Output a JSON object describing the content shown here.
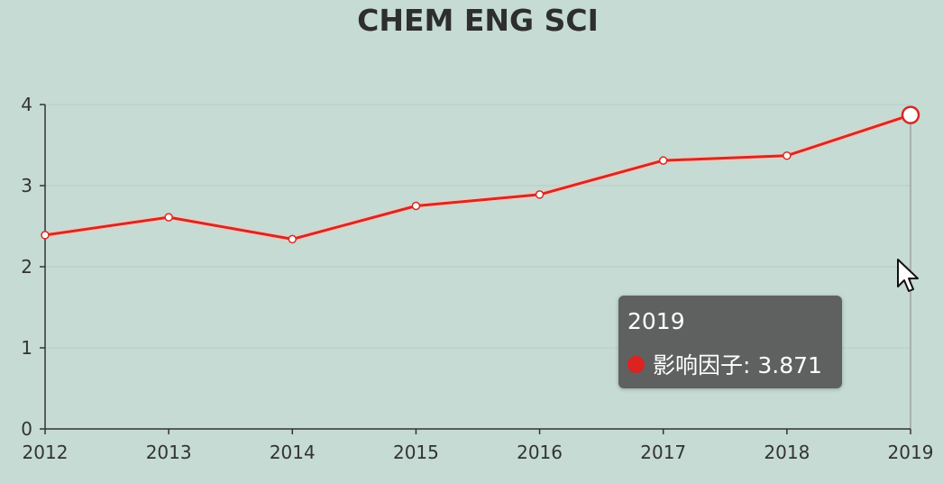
{
  "chart_data": {
    "type": "line",
    "title": "CHEM ENG SCI",
    "categories": [
      "2012",
      "2013",
      "2014",
      "2015",
      "2016",
      "2017",
      "2018",
      "2019"
    ],
    "series": [
      {
        "name": "影响因子",
        "values": [
          2.39,
          2.61,
          2.34,
          2.75,
          2.89,
          3.31,
          3.37,
          3.871
        ],
        "color": "#d42a23"
      }
    ],
    "yticks": [
      "0",
      "1",
      "2",
      "3",
      "4"
    ],
    "ylim": [
      0,
      4
    ],
    "xlabel": "",
    "ylabel": "",
    "grid": true,
    "highlighted_index": 7
  },
  "tooltip": {
    "title": "2019",
    "label": "影响因子: 3.871",
    "dot_color": "#dd2222"
  },
  "icons": {
    "cursor": "mouse-pointer-icon"
  }
}
